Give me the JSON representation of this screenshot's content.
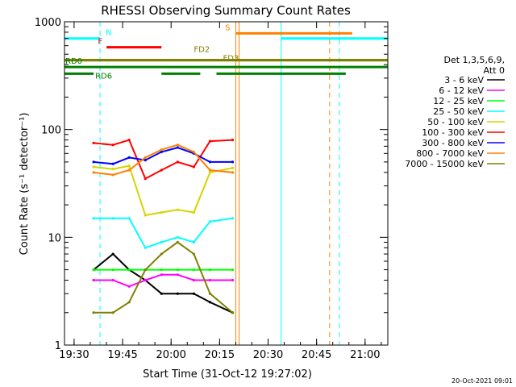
{
  "chart_data": {
    "type": "line",
    "title": "RHESSI Observing Summary Count Rates",
    "xlabel": "Start Time (31-Oct-12 19:27:02)",
    "ylabel": "Count Rate (s⁻¹ detector⁻¹)",
    "yscale": "log",
    "ylim": [
      1,
      1000
    ],
    "xlim_minutes": [
      0,
      100
    ],
    "x_ticks": [
      "19:30",
      "19:45",
      "20:00",
      "20:15",
      "20:30",
      "20:45",
      "21:00"
    ],
    "y_ticks": [
      "1",
      "10",
      "100",
      "1000"
    ],
    "legend_placement": "right",
    "legend_header": [
      "Det 1,3,5,6,9,",
      "Att 0"
    ],
    "data_gaps": [
      [
        0,
        9
      ],
      [
        53,
        100
      ]
    ],
    "series": [
      {
        "name": "3 - 6 keV",
        "color": "#000000",
        "x": [
          9,
          15,
          20,
          25,
          30,
          35,
          40,
          45,
          52
        ],
        "y": [
          5,
          7,
          5,
          4,
          3,
          3,
          3,
          2.5,
          2
        ]
      },
      {
        "name": "6 - 12 keV",
        "color": "#ff00ff",
        "x": [
          9,
          15,
          20,
          25,
          30,
          35,
          40,
          45,
          52
        ],
        "y": [
          4,
          4,
          3.5,
          4,
          4.5,
          4.5,
          4,
          4,
          4
        ]
      },
      {
        "name": "12 - 25 keV",
        "color": "#00ff00",
        "x": [
          9,
          15,
          20,
          25,
          30,
          35,
          40,
          45,
          52
        ],
        "y": [
          5,
          5,
          5,
          5,
          5,
          5,
          5,
          5,
          5
        ]
      },
      {
        "name": "25 - 50 keV",
        "color": "#00ffff",
        "x": [
          9,
          15,
          20,
          25,
          30,
          35,
          40,
          45,
          52
        ],
        "y": [
          15,
          15,
          15,
          8,
          9,
          10,
          9,
          14,
          15
        ]
      },
      {
        "name": "50 - 100 keV",
        "color": "#d4d400",
        "x": [
          9,
          15,
          20,
          25,
          30,
          35,
          40,
          45,
          52
        ],
        "y": [
          45,
          43,
          46,
          16,
          17,
          18,
          17,
          40,
          44
        ]
      },
      {
        "name": "100 - 300 keV",
        "color": "#ff0000",
        "x": [
          9,
          15,
          20,
          25,
          30,
          35,
          40,
          45,
          52
        ],
        "y": [
          75,
          72,
          80,
          35,
          42,
          50,
          45,
          78,
          80
        ]
      },
      {
        "name": "300 - 800 keV",
        "color": "#0000ff",
        "x": [
          9,
          15,
          20,
          25,
          30,
          35,
          40,
          45,
          52
        ],
        "y": [
          50,
          48,
          55,
          52,
          62,
          68,
          60,
          50,
          50
        ]
      },
      {
        "name": "800 - 7000 keV",
        "color": "#ff8000",
        "x": [
          9,
          15,
          20,
          25,
          30,
          35,
          40,
          45,
          52
        ],
        "y": [
          40,
          38,
          42,
          55,
          65,
          72,
          62,
          42,
          40
        ]
      },
      {
        "name": "7000 - 15000 keV",
        "color": "#808000",
        "x": [
          9,
          15,
          20,
          25,
          30,
          35,
          40,
          45,
          52
        ],
        "y": [
          2,
          2,
          2.5,
          5,
          7,
          9,
          7,
          3,
          2
        ]
      }
    ],
    "flag_bars": [
      {
        "label": "N",
        "color": "#00ffff",
        "segments": [
          [
            0,
            11
          ],
          [
            67,
            100
          ]
        ],
        "y": 700
      },
      {
        "label": "F",
        "color": "#ff0000",
        "segments": [
          [
            13,
            30
          ]
        ],
        "y": 580
      },
      {
        "label": "S",
        "color": "#ff8000",
        "segments": [
          [
            53,
            89
          ]
        ],
        "y": 780
      },
      {
        "label": "FD2",
        "color": "#808000",
        "segments": [
          [
            0,
            100
          ]
        ],
        "y": 440
      },
      {
        "label": "FD3",
        "color": "#808000",
        "segments": [
          [
            0,
            100
          ]
        ],
        "y": 440
      },
      {
        "label": "RD0",
        "color": "#008000",
        "segments": [
          [
            0,
            100
          ]
        ],
        "y": 380
      },
      {
        "label": "RD6",
        "color": "#008000",
        "segments": [
          [
            0,
            9
          ],
          [
            30,
            42
          ],
          [
            47,
            87
          ]
        ],
        "y": 330
      }
    ],
    "vertical_markers": [
      {
        "x": 0,
        "color": "#00ffff",
        "style": "solid"
      },
      {
        "x": 11,
        "color": "#00ffff",
        "style": "dashed"
      },
      {
        "x": 53,
        "color": "#ff8000",
        "style": "solid"
      },
      {
        "x": 54,
        "color": "#ff8000",
        "style": "solid"
      },
      {
        "x": 67,
        "color": "#00ffff",
        "style": "solid"
      },
      {
        "x": 82,
        "color": "#ff8000",
        "style": "dashed"
      },
      {
        "x": 85,
        "color": "#00ffff",
        "style": "dashed"
      }
    ]
  },
  "footer": {
    "timestamp": "20-Oct-2021 09:01"
  }
}
